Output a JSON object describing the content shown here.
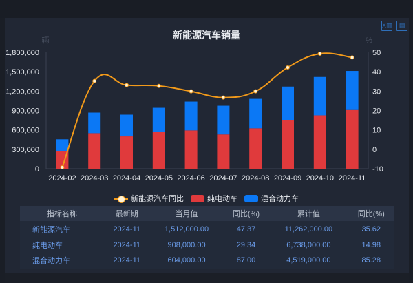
{
  "toolbar": {
    "excel_icon": "excel-export-icon",
    "save_icon": "save-icon"
  },
  "chart_data": {
    "type": "bar",
    "title": "新能源汽车销量",
    "ylabel": "辆",
    "y2label": "%",
    "categories": [
      "2024-02",
      "2024-03",
      "2024-04",
      "2024-05",
      "2024-06",
      "2024-07",
      "2024-08",
      "2024-09",
      "2024-10",
      "2024-11"
    ],
    "ylim": [
      0,
      1800000
    ],
    "yticks": [
      "0",
      "300,000",
      "600,000",
      "900,000",
      "1,200,000",
      "1,500,000",
      "1,800,000"
    ],
    "y2lim": [
      -10,
      50
    ],
    "y2ticks": [
      "-10",
      "0",
      "10",
      "20",
      "30",
      "40",
      "50"
    ],
    "stacked": true,
    "series": [
      {
        "name": "纯电动车",
        "type": "bar",
        "color": "#e03a3c",
        "values": [
          275000,
          550000,
          500000,
          572000,
          593000,
          530000,
          625000,
          752000,
          826000,
          908000
        ]
      },
      {
        "name": "混合动力车",
        "type": "bar",
        "color": "#0b78f5",
        "values": [
          180000,
          318000,
          336000,
          370000,
          445000,
          444000,
          455000,
          518000,
          593000,
          604000
        ]
      },
      {
        "name": "新能源汽车同比",
        "type": "line",
        "color": "#f29a1a",
        "values": [
          -9.3,
          35.2,
          33.1,
          32.7,
          29.9,
          26.7,
          29.9,
          42.2,
          49.3,
          47.37
        ]
      }
    ],
    "legend_position": "bottom"
  },
  "table": {
    "headers": [
      "指标名称",
      "最新期",
      "当月值",
      "同比(%)",
      "累计值",
      "同比(%)"
    ],
    "rows": [
      [
        "新能源汽车",
        "2024-11",
        "1,512,000.00",
        "47.37",
        "11,262,000.00",
        "35.62"
      ],
      [
        "纯电动车",
        "2024-11",
        "908,000.00",
        "29.34",
        "6,738,000.00",
        "14.98"
      ],
      [
        "混合动力车",
        "2024-11",
        "604,000.00",
        "87.00",
        "4,519,000.00",
        "85.28"
      ]
    ]
  }
}
